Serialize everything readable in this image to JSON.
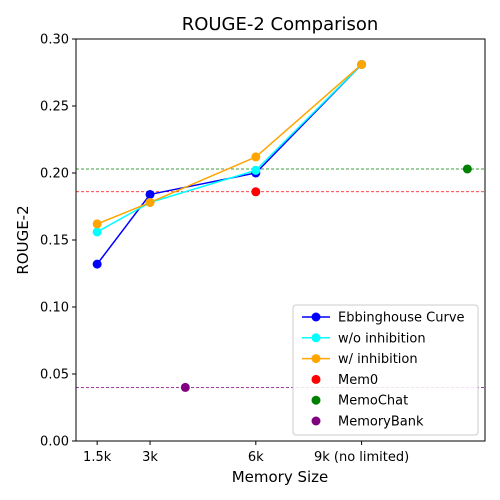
{
  "chart_data": {
    "type": "line",
    "title": "ROUGE-2 Comparison",
    "xlabel": "Memory Size",
    "ylabel": "ROUGE-2",
    "ylim": [
      0.0,
      0.3
    ],
    "yticks": [
      "0.00",
      "0.05",
      "0.10",
      "0.15",
      "0.20",
      "0.25",
      "0.30"
    ],
    "x_ticks": [
      {
        "x": 1.5,
        "label": "1.5k"
      },
      {
        "x": 3,
        "label": "3k"
      },
      {
        "x": 6,
        "label": "6k"
      },
      {
        "x": 9,
        "label": "9k (no limited)"
      }
    ],
    "xlim": [
      0.9,
      12.5
    ],
    "grid": false,
    "legend_position": "lower right",
    "series": [
      {
        "name": "Ebbinghouse Curve",
        "kind": "line",
        "color": "#0000ff",
        "x": [
          1.5,
          3,
          6,
          9
        ],
        "y": [
          0.132,
          0.184,
          0.2,
          0.281
        ]
      },
      {
        "name": "w/o inhibition",
        "kind": "line",
        "color": "#00ffff",
        "x": [
          1.5,
          3,
          6,
          9
        ],
        "y": [
          0.156,
          0.178,
          0.202,
          0.281
        ]
      },
      {
        "name": "w/ inhibition",
        "kind": "line",
        "color": "#ffa500",
        "x": [
          1.5,
          3,
          6,
          9
        ],
        "y": [
          0.162,
          0.178,
          0.212,
          0.281
        ]
      },
      {
        "name": "Mem0",
        "kind": "scatter",
        "color": "#ff0000",
        "x": [
          6
        ],
        "y": [
          0.186
        ],
        "hline": 0.186
      },
      {
        "name": "MemoChat",
        "kind": "scatter",
        "color": "#008000",
        "x": [
          12.0
        ],
        "y": [
          0.203
        ],
        "hline": 0.203
      },
      {
        "name": "MemoryBank",
        "kind": "scatter",
        "color": "#800080",
        "x": [
          4.0
        ],
        "y": [
          0.04
        ],
        "hline": 0.04
      }
    ]
  }
}
